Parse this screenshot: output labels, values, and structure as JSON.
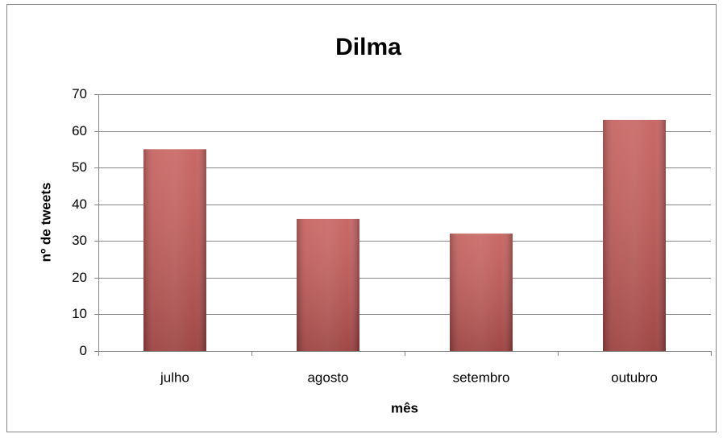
{
  "chart_data": {
    "type": "bar",
    "title": "Dilma",
    "x_label": "mês",
    "y_label": "nº de tweets",
    "categories": [
      "julho",
      "agosto",
      "setembro",
      "outubro"
    ],
    "values": [
      55,
      36,
      32,
      63
    ],
    "color": "#c0504d",
    "ylim": [
      0,
      70
    ],
    "yticks": [
      0,
      10,
      20,
      30,
      40,
      50,
      60,
      70
    ],
    "grid": true
  }
}
